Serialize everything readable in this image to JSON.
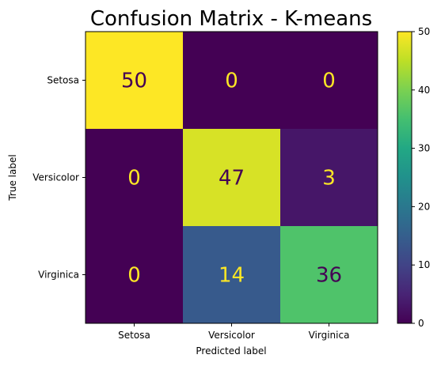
{
  "chart_data": {
    "type": "heatmap",
    "title": "Confusion Matrix - K-means",
    "xlabel": "Predicted label",
    "ylabel": "True label",
    "x_categories": [
      "Setosa",
      "Versicolor",
      "Virginica"
    ],
    "y_categories": [
      "Setosa",
      "Versicolor",
      "Virginica"
    ],
    "values": [
      [
        50,
        0,
        0
      ],
      [
        0,
        47,
        3
      ],
      [
        0,
        14,
        36
      ]
    ],
    "colormap": "viridis",
    "vmin": 0,
    "vmax": 50,
    "colorbar_ticks": [
      0,
      10,
      20,
      30,
      40,
      50
    ],
    "text_color_dark_cells": "#fde725",
    "text_color_light_cells": "#440154"
  }
}
